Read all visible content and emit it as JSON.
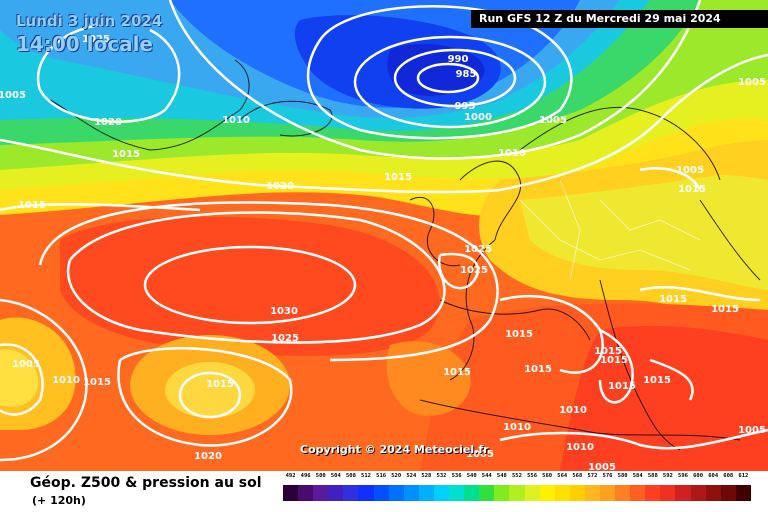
{
  "header": {
    "date": "Lundi 3 juin 2024",
    "time": "14:00 locale",
    "run": "Run GFS 12 Z du Mercredi 29 mai 2024"
  },
  "copyright": "Copyright © 2024 Meteociel.fr",
  "footer": {
    "title": "Géop. Z500 & pression au sol",
    "subtitle": "(+ 120h)"
  },
  "legend": {
    "labels": [
      "492",
      "496",
      "500",
      "504",
      "508",
      "512",
      "516",
      "520",
      "524",
      "528",
      "532",
      "536",
      "540",
      "544",
      "548",
      "552",
      "556",
      "560",
      "564",
      "568",
      "572",
      "576",
      "580",
      "584",
      "588",
      "592",
      "596",
      "600",
      "604",
      "608",
      "612"
    ],
    "colors": [
      "#2a0038",
      "#4a0a70",
      "#5a1aa0",
      "#4020c0",
      "#3030e0",
      "#1030ff",
      "#0050ff",
      "#0070ff",
      "#0090ff",
      "#00b0ff",
      "#00d0ff",
      "#00e0d0",
      "#00e090",
      "#30e040",
      "#80ec20",
      "#b0f020",
      "#e0f020",
      "#fff000",
      "#ffe000",
      "#ffd000",
      "#ffb820",
      "#ffa020",
      "#ff8020",
      "#ff6020",
      "#ff4020",
      "#f03020",
      "#d02020",
      "#b01818",
      "#901010",
      "#700808",
      "#400000"
    ]
  },
  "isobars": [
    "1025",
    "1005",
    "1020",
    "1010",
    "990",
    "985",
    "995",
    "1000",
    "1005",
    "1005",
    "1015",
    "1010",
    "1015",
    "1020",
    "1015",
    "1005",
    "1015",
    "1025",
    "1025",
    "1030",
    "1025",
    "1015",
    "1015",
    "1005",
    "1010",
    "1015",
    "1015",
    "1015",
    "1015",
    "1015",
    "1015",
    "1015",
    "1015",
    "1015",
    "1010",
    "1010",
    "1020",
    "1005",
    "1010",
    "1005",
    "1005"
  ]
}
